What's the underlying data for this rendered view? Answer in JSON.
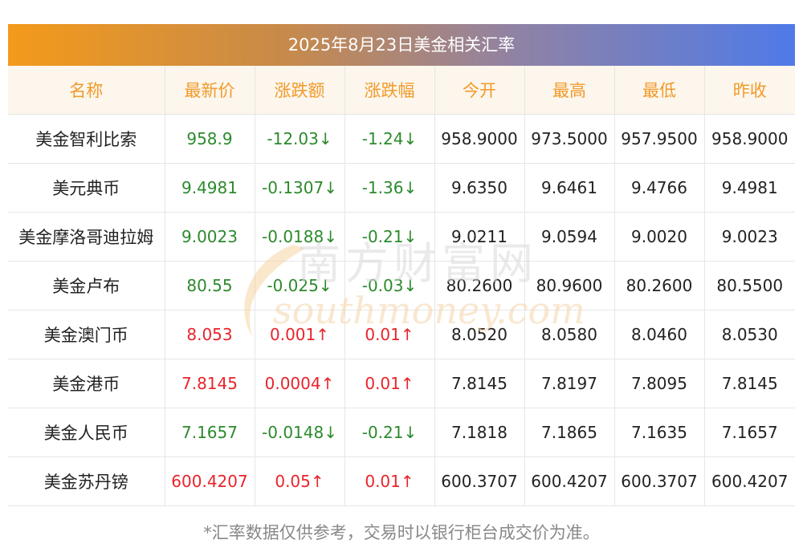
{
  "title": "2025年8月23日美金相关汇率",
  "headers": [
    "名称",
    "最新价",
    "涨跌额",
    "涨跌幅",
    "今开",
    "最高",
    "最低",
    "昨收"
  ],
  "rows": [
    {
      "name": "美金智利比索",
      "latest": "958.9",
      "change": "-12.03↓",
      "pct": "-1.24↓",
      "open": "958.9000",
      "high": "973.5000",
      "low": "957.9500",
      "prev": "958.9000",
      "dir": "down"
    },
    {
      "name": "美元典币",
      "latest": "9.4981",
      "change": "-0.1307↓",
      "pct": "-1.36↓",
      "open": "9.6350",
      "high": "9.6461",
      "low": "9.4766",
      "prev": "9.4981",
      "dir": "down"
    },
    {
      "name": "美金摩洛哥迪拉姆",
      "latest": "9.0023",
      "change": "-0.0188↓",
      "pct": "-0.21↓",
      "open": "9.0211",
      "high": "9.0594",
      "low": "9.0020",
      "prev": "9.0023",
      "dir": "down"
    },
    {
      "name": "美金卢布",
      "latest": "80.55",
      "change": "-0.025↓",
      "pct": "-0.03↓",
      "open": "80.2600",
      "high": "80.9600",
      "low": "80.2600",
      "prev": "80.5500",
      "dir": "down"
    },
    {
      "name": "美金澳门币",
      "latest": "8.053",
      "change": "0.001↑",
      "pct": "0.01↑",
      "open": "8.0520",
      "high": "8.0580",
      "low": "8.0460",
      "prev": "8.0530",
      "dir": "up"
    },
    {
      "name": "美金港币",
      "latest": "7.8145",
      "change": "0.0004↑",
      "pct": "0.01↑",
      "open": "7.8145",
      "high": "7.8197",
      "low": "7.8095",
      "prev": "7.8145",
      "dir": "up"
    },
    {
      "name": "美金人民币",
      "latest": "7.1657",
      "change": "-0.0148↓",
      "pct": "-0.21↓",
      "open": "7.1818",
      "high": "7.1865",
      "low": "7.1635",
      "prev": "7.1657",
      "dir": "down"
    },
    {
      "name": "美金苏丹镑",
      "latest": "600.4207",
      "change": "0.05↑",
      "pct": "0.01↑",
      "open": "600.3707",
      "high": "600.4207",
      "low": "600.3707",
      "prev": "600.4207",
      "dir": "up"
    }
  ],
  "watermark": {
    "cn": "南方财富网",
    "en": "southmoney.com"
  },
  "footnote": "*汇率数据仅供参考，交易时以银行柜台成交价为准。",
  "colors": {
    "up": "#e8242b",
    "down": "#2c8a2c",
    "header_text": "#f19a2a",
    "header_bg": "#fcf6ec",
    "gradient_start": "#f39a1a",
    "gradient_end": "#4f7ae8"
  }
}
